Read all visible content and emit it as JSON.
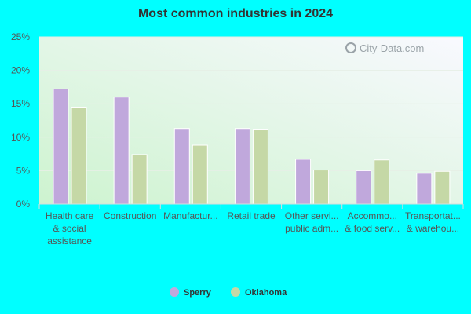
{
  "chart_data": {
    "type": "bar",
    "title": "Most common industries in 2024",
    "categories": [
      [
        "Health care",
        "& social",
        "assistance"
      ],
      [
        "Construction"
      ],
      [
        "Manufactur..."
      ],
      [
        "Retail trade"
      ],
      [
        "Other servi...",
        "public adm..."
      ],
      [
        "Accommo...",
        "& food serv..."
      ],
      [
        "Transportat...",
        "& warehou..."
      ]
    ],
    "series": [
      {
        "name": "Sperry",
        "color": "#c0a8dc",
        "values": [
          17.2,
          16.0,
          11.3,
          11.3,
          6.7,
          5.0,
          4.6
        ]
      },
      {
        "name": "Oklahoma",
        "color": "#c5d8a6",
        "values": [
          14.5,
          7.4,
          8.8,
          11.2,
          5.1,
          6.6,
          4.9
        ]
      }
    ],
    "ylim": [
      0,
      25
    ],
    "yticks": [
      "0%",
      "5%",
      "10%",
      "15%",
      "20%",
      "25%"
    ],
    "ytick_values": [
      0,
      5,
      10,
      15,
      20,
      25
    ],
    "grid": true,
    "legend": "bottom-center"
  },
  "watermark": "City-Data.com"
}
